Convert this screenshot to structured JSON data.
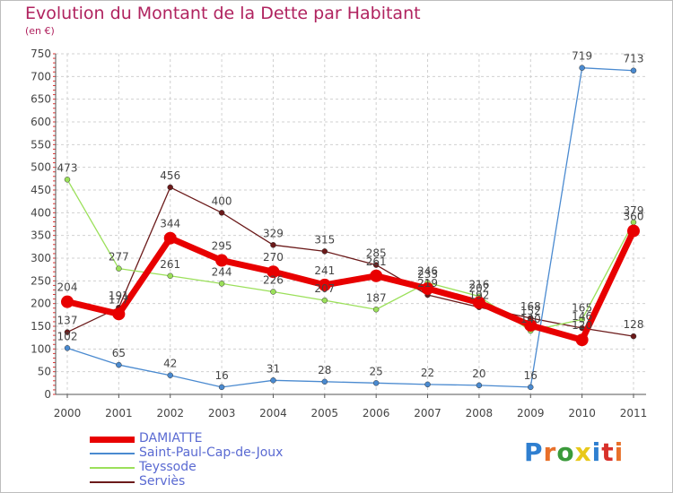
{
  "title": "Evolution du Montant de la Dette par Habitant",
  "subtitle": "(en €)",
  "logo_text": "Proxiti",
  "chart_data": {
    "type": "line",
    "title": "Evolution du Montant de la Dette par Habitant",
    "subtitle": "(en €)",
    "x": [
      "2000",
      "2001",
      "2002",
      "2003",
      "2004",
      "2005",
      "2006",
      "2007",
      "2008",
      "2009",
      "2010",
      "2011"
    ],
    "ylim": [
      0,
      750
    ],
    "yticks": [
      "0",
      "50",
      "100",
      "150",
      "200",
      "250",
      "300",
      "350",
      "400",
      "450",
      "500",
      "550",
      "600",
      "650",
      "700",
      "750"
    ],
    "grid": true,
    "legend_position": "bottom-left",
    "series": [
      {
        "name": "DAMIATTE",
        "color": "#e80000",
        "values": [
          204,
          177,
          344,
          295,
          270,
          241,
          261,
          233,
          202,
          152,
          120,
          360
        ],
        "labels": [
          "204",
          "177",
          "344",
          "295",
          "270",
          "241",
          "261",
          "233",
          "202",
          "152",
          "120",
          "360"
        ]
      },
      {
        "name": "Saint-Paul-Cap-de-Joux",
        "color": "#4a8ad0",
        "values": [
          102,
          65,
          42,
          16,
          31,
          28,
          25,
          22,
          20,
          16,
          719,
          713
        ],
        "labels": [
          "102",
          "65",
          "42",
          "16",
          "31",
          "28",
          "25",
          "22",
          "20",
          "16",
          "719",
          "713"
        ]
      },
      {
        "name": "Teyssode",
        "color": "#9be05a",
        "values": [
          473,
          277,
          261,
          244,
          226,
          207,
          187,
          246,
          216,
          140,
          165,
          379
        ],
        "labels": [
          "473",
          "277",
          "261",
          "244",
          "226",
          "207",
          "187",
          "246",
          "216",
          "140",
          "165",
          "379"
        ]
      },
      {
        "name": "Serviès",
        "color": "#6b1a1a",
        "values": [
          137,
          191,
          456,
          400,
          329,
          315,
          285,
          219,
          192,
          168,
          146,
          128
        ],
        "labels": [
          "137",
          "191",
          "456",
          "400",
          "329",
          "315",
          "285",
          "219",
          "192",
          "168",
          "146",
          "128"
        ]
      }
    ]
  }
}
